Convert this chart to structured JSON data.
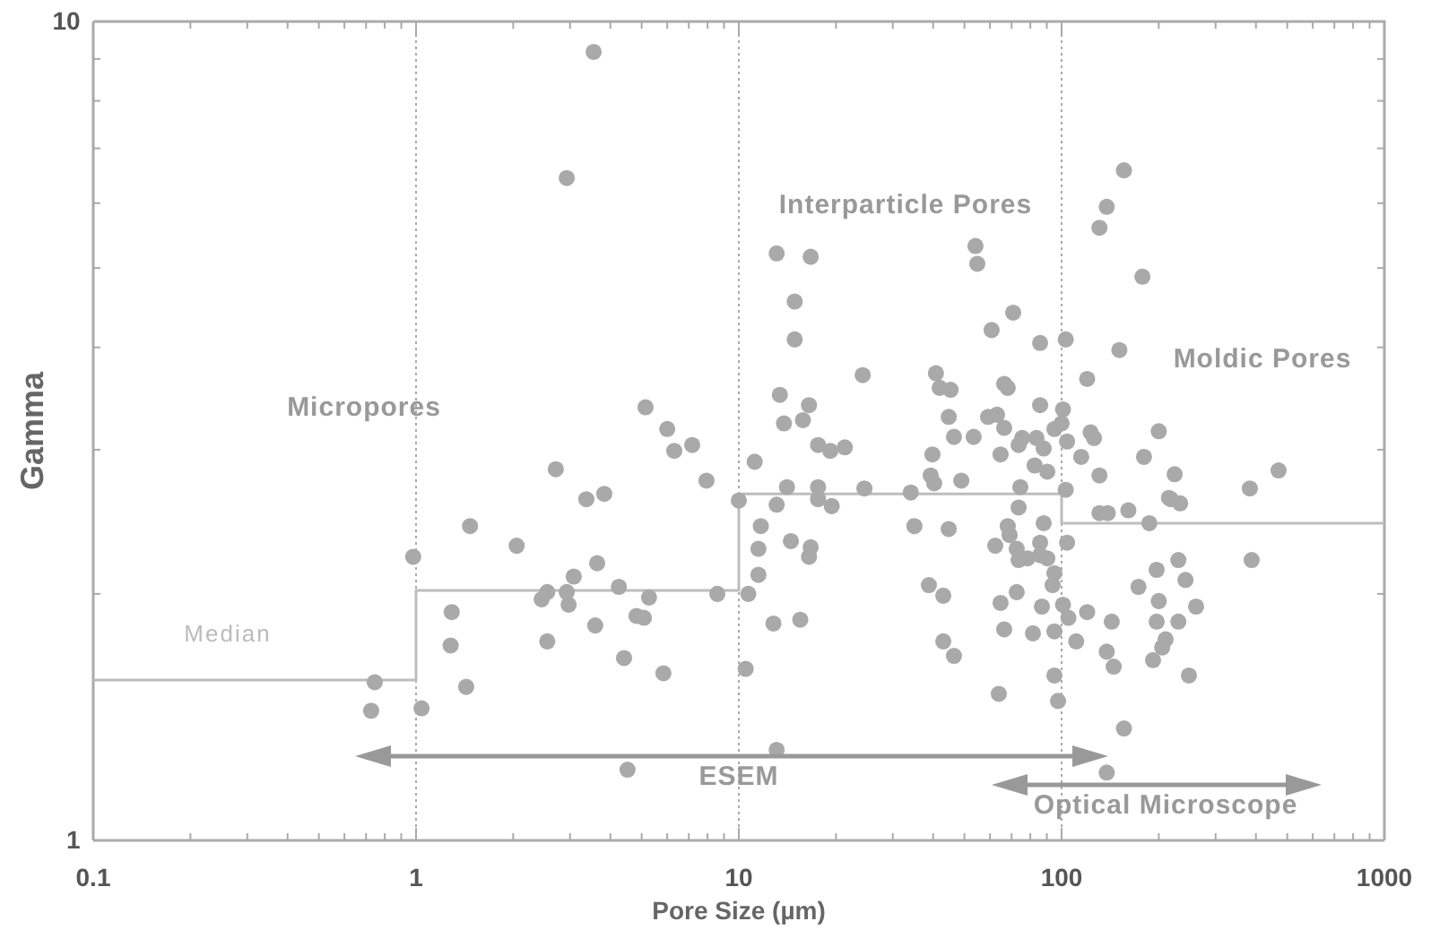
{
  "chart_data": {
    "type": "scatter",
    "xlabel": "Pore Size (µm)",
    "ylabel": "Gamma",
    "log": "xy",
    "grid": "x",
    "marker": "circle",
    "xlim": [
      0.1,
      1000
    ],
    "ylim": [
      1,
      10
    ],
    "xticks": [
      0.1,
      {
        "value": 0.2,
        "label": null
      },
      {
        "value": 0.3,
        "label": null
      },
      {
        "value": 0.4,
        "label": null
      },
      {
        "value": 0.5,
        "label": null
      },
      {
        "value": 0.6,
        "label": null
      },
      {
        "value": 0.7,
        "label": null
      },
      {
        "value": 0.8,
        "label": null
      },
      {
        "value": 0.9,
        "label": null
      },
      1,
      {
        "value": 2,
        "label": null
      },
      {
        "value": 3,
        "label": null
      },
      {
        "value": 4,
        "label": null
      },
      {
        "value": 5,
        "label": null
      },
      {
        "value": 6,
        "label": null
      },
      {
        "value": 7,
        "label": null
      },
      {
        "value": 8,
        "label": null
      },
      {
        "value": 9,
        "label": null
      },
      10,
      {
        "value": 20,
        "label": null
      },
      {
        "value": 30,
        "label": null
      },
      {
        "value": 40,
        "label": null
      },
      {
        "value": 50,
        "label": null
      },
      {
        "value": 60,
        "label": null
      },
      {
        "value": 70,
        "label": null
      },
      {
        "value": 80,
        "label": null
      },
      {
        "value": 90,
        "label": null
      },
      100,
      {
        "value": 200,
        "label": null
      },
      {
        "value": 300,
        "label": null
      },
      {
        "value": 400,
        "label": null
      },
      {
        "value": 500,
        "label": null
      },
      {
        "value": 600,
        "label": null
      },
      {
        "value": 700,
        "label": null
      },
      {
        "value": 800,
        "label": null
      },
      {
        "value": 900,
        "label": null
      },
      1000
    ],
    "yticks": [
      1,
      {
        "value": 2,
        "label": null
      },
      {
        "value": 3,
        "label": null
      },
      {
        "value": 4,
        "label": null
      },
      {
        "value": 5,
        "label": null
      },
      {
        "value": 6,
        "label": null
      },
      {
        "value": 7,
        "label": null
      },
      {
        "value": 8,
        "label": null
      },
      {
        "value": 9,
        "label": null
      },
      10
    ],
    "annotations": [
      "Median",
      "Micropores",
      "Interparticle Pores",
      "Moldic Pores",
      "ESEM",
      "Optical Microscope"
    ],
    "series": [
      {
        "type": "step",
        "marker": "none",
        "color": "#bdbdbd",
        "x": [
          0.1,
          1,
          10,
          100,
          1000
        ],
        "values": [
          1.57,
          2.02,
          2.65,
          2.44,
          2.44
        ]
      },
      {
        "color": "#a9a9a9",
        "x": [
          0.745,
          0.726,
          0.98,
          1.04,
          1.29,
          1.28,
          1.43,
          1.47,
          2.05,
          2.71,
          3.37,
          3.83,
          3.64,
          3.08,
          2.93,
          2.45,
          2.55,
          2.97,
          2.55,
          3.59,
          4.25,
          5.27,
          4.82,
          5.08,
          4.41,
          5.84,
          8.58,
          4.52,
          7.94,
          6.31,
          7.17,
          6.0,
          5.14,
          3.55,
          2.93,
          10,
          10.5,
          13.1,
          16.7,
          14.9,
          14.9,
          24.2,
          13.4,
          13.8,
          16.5,
          15.8,
          17.6,
          19.2,
          21.3,
          11.2,
          14.1,
          17.6,
          24.5,
          34.1,
          54.1,
          54.8,
          40.8,
          41.9,
          45.3,
          44.7,
          46.4,
          53.4,
          39.8,
          39.3,
          40.3,
          48.9,
          60.7,
          70.8,
          85.8,
          103,
          66.4,
          68.1,
          59.2,
          63.1,
          66.4,
          85.8,
          75.5,
          64.7,
          83.6,
          88.0,
          82.5,
          90.3,
          101,
          95.0,
          104,
          74.5,
          103,
          13.1,
          17.6,
          19.4,
          11.7,
          11.5,
          14.5,
          16.7,
          16.5,
          11.5,
          10.7,
          12.8,
          15.5,
          13.1,
          35.0,
          44.7,
          38.8,
          43.0,
          43.0,
          46.4,
          73.6,
          68.1,
          69.0,
          62.3,
          72.6,
          78.4,
          88.0,
          85.8,
          90.3,
          104,
          72.6,
          64.7,
          86.9,
          66.4,
          81.5,
          95.0,
          95.0,
          93.8,
          101,
          105,
          95.0,
          63.9,
          97.5,
          156,
          138,
          131,
          178,
          151,
          120,
          100,
          123,
          126,
          115,
          200,
          180,
          131,
          224,
          383,
          470,
          215,
          73.6,
          131,
          139,
          161,
          187,
          218,
          233,
          85.8,
          73.6,
          388,
          197,
          230,
          242,
          173,
          200,
          261,
          120,
          143,
          197,
          230,
          111,
          210,
          205,
          138,
          145,
          192,
          248,
          156,
          138
        ],
        "values": [
          1.56,
          1.44,
          2.22,
          1.45,
          1.9,
          1.73,
          1.54,
          2.42,
          2.29,
          2.84,
          2.61,
          2.65,
          2.18,
          2.1,
          2.01,
          1.97,
          2.01,
          1.94,
          1.75,
          1.83,
          2.04,
          1.98,
          1.88,
          1.87,
          1.67,
          1.6,
          2.0,
          1.22,
          2.75,
          2.99,
          3.04,
          3.18,
          3.38,
          9.18,
          6.44,
          2.6,
          1.62,
          5.21,
          5.16,
          4.55,
          4.09,
          3.7,
          3.5,
          3.23,
          3.4,
          3.26,
          3.04,
          2.99,
          3.02,
          2.9,
          2.7,
          2.7,
          2.69,
          2.66,
          5.32,
          5.06,
          3.72,
          3.57,
          3.55,
          3.29,
          3.11,
          3.11,
          2.96,
          2.79,
          2.73,
          2.75,
          4.2,
          4.41,
          4.05,
          4.09,
          3.61,
          3.57,
          3.29,
          3.31,
          3.19,
          3.4,
          3.1,
          2.96,
          3.1,
          3.01,
          2.87,
          2.82,
          3.36,
          3.18,
          3.07,
          2.7,
          2.68,
          2.57,
          2.61,
          2.56,
          2.42,
          2.27,
          2.32,
          2.28,
          2.22,
          2.11,
          2.0,
          1.84,
          1.86,
          1.29,
          2.42,
          2.4,
          2.05,
          1.99,
          1.75,
          1.68,
          2.55,
          2.42,
          2.36,
          2.29,
          2.27,
          2.21,
          2.44,
          2.31,
          2.21,
          2.31,
          2.01,
          1.95,
          1.93,
          1.81,
          1.79,
          1.8,
          2.12,
          2.05,
          1.94,
          1.87,
          1.59,
          1.51,
          1.48,
          6.58,
          5.94,
          5.6,
          4.88,
          3.97,
          3.66,
          3.23,
          3.15,
          3.1,
          2.94,
          3.16,
          2.94,
          2.79,
          2.8,
          2.69,
          2.83,
          2.62,
          3.04,
          2.51,
          2.51,
          2.53,
          2.44,
          2.61,
          2.58,
          2.23,
          2.2,
          2.2,
          2.14,
          2.2,
          2.08,
          2.04,
          1.96,
          1.93,
          1.9,
          1.85,
          1.85,
          1.85,
          1.75,
          1.76,
          1.72,
          1.7,
          1.63,
          1.66,
          1.59,
          1.37,
          1.21
        ]
      }
    ]
  }
}
